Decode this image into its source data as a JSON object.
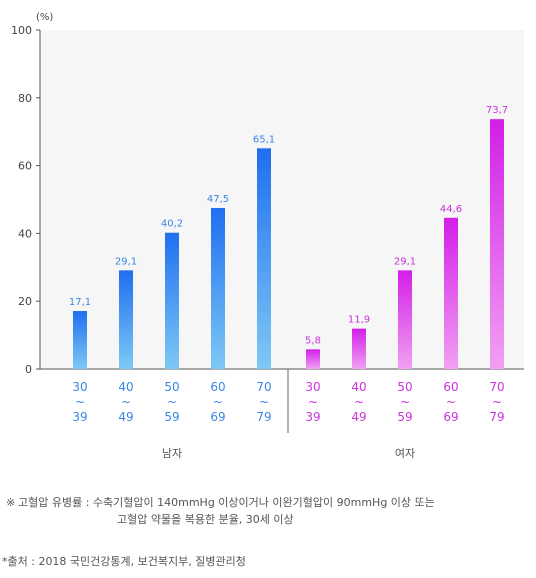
{
  "chart_data": {
    "type": "bar",
    "unit_label": "(%)",
    "ylim": [
      0,
      100
    ],
    "yticks": [
      0,
      20,
      40,
      60,
      80,
      100
    ],
    "grid": false,
    "groups": [
      {
        "name": "남자",
        "color_top": "#1f6ff0",
        "color_bottom": "#7ec8f5",
        "label_color": "#3b86e6",
        "categories": [
          {
            "top": "30",
            "sep": "~",
            "bottom": "39"
          },
          {
            "top": "40",
            "sep": "~",
            "bottom": "49"
          },
          {
            "top": "50",
            "sep": "~",
            "bottom": "59"
          },
          {
            "top": "60",
            "sep": "~",
            "bottom": "69"
          },
          {
            "top": "70",
            "sep": "~",
            "bottom": "79"
          }
        ],
        "values": [
          17.1,
          29.1,
          40.2,
          47.5,
          65.1
        ],
        "value_labels": [
          "17,1",
          "29,1",
          "40,2",
          "47,5",
          "65,1"
        ]
      },
      {
        "name": "여자",
        "color_top": "#d21fe8",
        "color_bottom": "#f1a0f2",
        "label_color": "#cc33dd",
        "categories": [
          {
            "top": "30",
            "sep": "~",
            "bottom": "39"
          },
          {
            "top": "40",
            "sep": "~",
            "bottom": "49"
          },
          {
            "top": "50",
            "sep": "~",
            "bottom": "59"
          },
          {
            "top": "60",
            "sep": "~",
            "bottom": "69"
          },
          {
            "top": "70",
            "sep": "~",
            "bottom": "79"
          }
        ],
        "values": [
          5.8,
          11.9,
          29.1,
          44.6,
          73.7
        ],
        "value_labels": [
          "5,8",
          "11,9",
          "29,1",
          "44,6",
          "73,7"
        ]
      }
    ]
  },
  "note": {
    "mark": "※",
    "line1": "고혈압 유병률 : 수축기혈압이 140mmHg 이상이거나 이완기혈압이 90mmHg 이상 또는",
    "line2": "고혈압 약물을 복용한 분율, 30세 이상"
  },
  "source": "*출처 : 2018 국민건강통계, 보건복지부, 질병관리청"
}
